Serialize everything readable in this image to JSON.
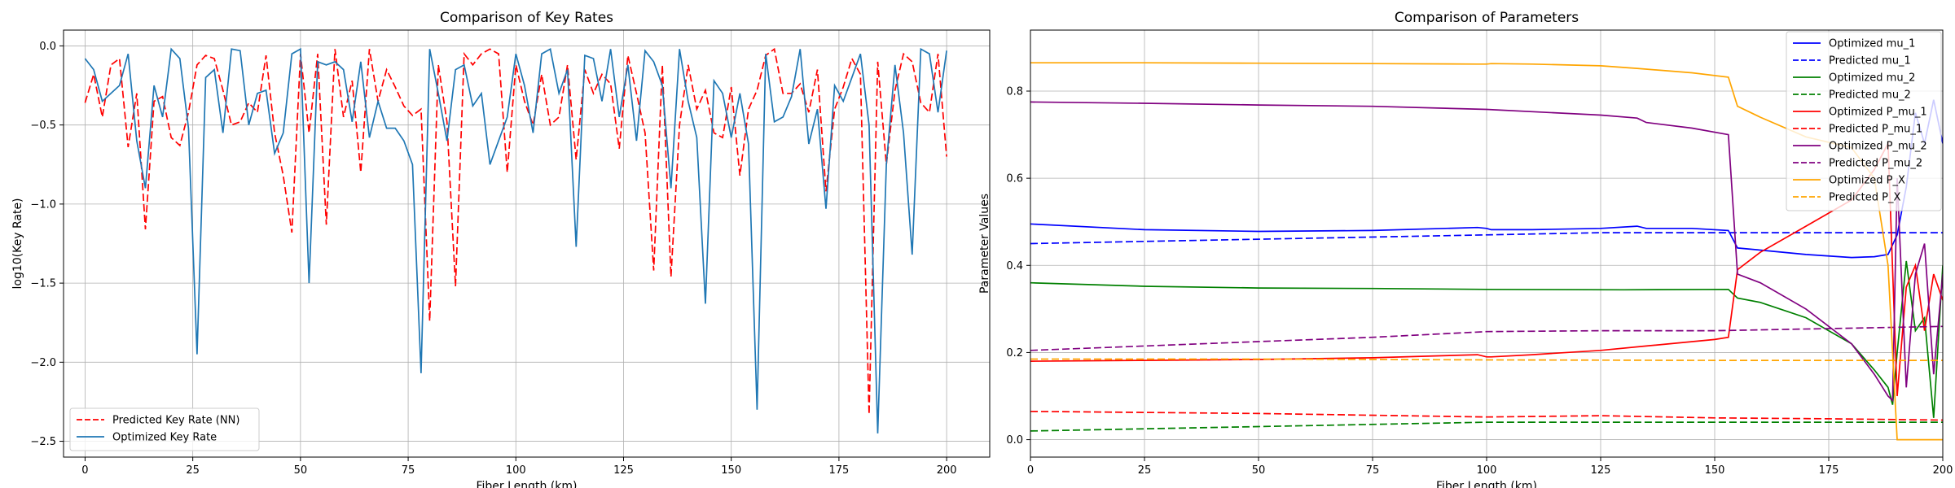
{
  "chart_data": [
    {
      "type": "line",
      "title": "Comparison of Key Rates",
      "xlabel": "Fiber Length (km)",
      "ylabel": "log10(Key Rate)",
      "xlim": [
        -5,
        210
      ],
      "ylim": [
        -2.6,
        0.1
      ],
      "xticks": [
        0,
        25,
        50,
        75,
        100,
        125,
        150,
        175,
        200
      ],
      "yticks": [
        0.0,
        -0.5,
        -1.0,
        -1.5,
        -2.0,
        -2.5
      ],
      "xtick_labels": [
        "0",
        "25",
        "50",
        "75",
        "100",
        "125",
        "150",
        "175",
        "200"
      ],
      "ytick_labels": [
        "0.0",
        "−0.5",
        "−1.0",
        "−1.5",
        "−2.0",
        "−2.5"
      ],
      "grid": true,
      "legend_position": "lower-left",
      "series": [
        {
          "name": "Predicted Key Rate (NN)",
          "color": "#ff0000",
          "dash": "dashed",
          "x": [
            0,
            2,
            4,
            6,
            8,
            10,
            12,
            14,
            16,
            18,
            20,
            22,
            24,
            26,
            28,
            30,
            32,
            34,
            36,
            38,
            40,
            42,
            44,
            46,
            48,
            50,
            52,
            54,
            56,
            58,
            60,
            62,
            64,
            66,
            68,
            70,
            72,
            74,
            76,
            78,
            80,
            82,
            84,
            86,
            88,
            90,
            92,
            94,
            96,
            98,
            100,
            102,
            104,
            106,
            108,
            110,
            112,
            114,
            116,
            118,
            120,
            122,
            124,
            126,
            128,
            130,
            132,
            134,
            136,
            138,
            140,
            142,
            144,
            146,
            148,
            150,
            152,
            154,
            156,
            158,
            160,
            162,
            164,
            166,
            168,
            170,
            172,
            174,
            176,
            178,
            180,
            182,
            184,
            186,
            188,
            190,
            192,
            194,
            196,
            198,
            200
          ],
          "values": [
            -0.36,
            -0.18,
            -0.45,
            -0.12,
            -0.08,
            -0.64,
            -0.3,
            -1.16,
            -0.35,
            -0.32,
            -0.58,
            -0.63,
            -0.42,
            -0.12,
            -0.06,
            -0.08,
            -0.28,
            -0.5,
            -0.48,
            -0.36,
            -0.42,
            -0.06,
            -0.55,
            -0.82,
            -1.18,
            -0.05,
            -0.55,
            -0.05,
            -1.13,
            -0.02,
            -0.45,
            -0.22,
            -0.8,
            -0.02,
            -0.35,
            -0.15,
            -0.26,
            -0.38,
            -0.44,
            -0.4,
            -1.74,
            -0.12,
            -0.48,
            -1.52,
            -0.05,
            -0.12,
            -0.05,
            -0.02,
            -0.05,
            -0.8,
            -0.12,
            -0.35,
            -0.5,
            -0.18,
            -0.5,
            -0.45,
            -0.12,
            -0.72,
            -0.15,
            -0.3,
            -0.18,
            -0.24,
            -0.65,
            -0.06,
            -0.3,
            -0.55,
            -1.42,
            -0.12,
            -1.46,
            -0.5,
            -0.12,
            -0.4,
            -0.28,
            -0.55,
            -0.58,
            -0.26,
            -0.82,
            -0.4,
            -0.28,
            -0.06,
            -0.02,
            -0.3,
            -0.3,
            -0.24,
            -0.42,
            -0.15,
            -0.92,
            -0.4,
            -0.26,
            -0.08,
            -0.18,
            -2.33,
            -0.1,
            -0.75,
            -0.28,
            -0.05,
            -0.1,
            -0.36,
            -0.42,
            -0.05,
            -0.7
          ]
        },
        {
          "name": "Optimized Key Rate",
          "color": "#1f77b4",
          "dash": "solid",
          "x": [
            0,
            2,
            4,
            6,
            8,
            10,
            12,
            14,
            16,
            18,
            20,
            22,
            24,
            26,
            28,
            30,
            32,
            34,
            36,
            38,
            40,
            42,
            44,
            46,
            48,
            50,
            52,
            54,
            56,
            58,
            60,
            62,
            64,
            66,
            68,
            70,
            72,
            74,
            76,
            78,
            80,
            82,
            84,
            86,
            88,
            90,
            92,
            94,
            96,
            98,
            100,
            102,
            104,
            106,
            108,
            110,
            112,
            114,
            116,
            118,
            120,
            122,
            124,
            126,
            128,
            130,
            132,
            134,
            136,
            138,
            140,
            142,
            144,
            146,
            148,
            150,
            152,
            154,
            156,
            158,
            160,
            162,
            164,
            166,
            168,
            170,
            172,
            174,
            176,
            178,
            180,
            182,
            184,
            186,
            188,
            190,
            192,
            194,
            196,
            198,
            200
          ],
          "values": [
            -0.08,
            -0.15,
            -0.35,
            -0.3,
            -0.25,
            -0.05,
            -0.6,
            -0.9,
            -0.25,
            -0.45,
            -0.02,
            -0.08,
            -0.52,
            -1.95,
            -0.2,
            -0.15,
            -0.55,
            -0.02,
            -0.03,
            -0.5,
            -0.3,
            -0.28,
            -0.68,
            -0.55,
            -0.05,
            -0.02,
            -1.5,
            -0.1,
            -0.12,
            -0.1,
            -0.15,
            -0.48,
            -0.1,
            -0.58,
            -0.35,
            -0.52,
            -0.52,
            -0.6,
            -0.75,
            -2.07,
            -0.02,
            -0.3,
            -0.6,
            -0.15,
            -0.12,
            -0.38,
            -0.3,
            -0.75,
            -0.6,
            -0.45,
            -0.05,
            -0.25,
            -0.55,
            -0.05,
            -0.02,
            -0.3,
            -0.15,
            -1.27,
            -0.06,
            -0.08,
            -0.35,
            -0.02,
            -0.45,
            -0.12,
            -0.6,
            -0.03,
            -0.1,
            -0.25,
            -0.9,
            -0.02,
            -0.35,
            -0.58,
            -1.63,
            -0.22,
            -0.3,
            -0.58,
            -0.3,
            -0.62,
            -2.3,
            -0.05,
            -0.48,
            -0.45,
            -0.32,
            -0.02,
            -0.62,
            -0.4,
            -1.03,
            -0.25,
            -0.35,
            -0.2,
            -0.05,
            -0.5,
            -2.45,
            -0.75,
            -0.12,
            -0.55,
            -1.32,
            -0.02,
            -0.05,
            -0.42,
            -0.03
          ]
        }
      ]
    },
    {
      "type": "line",
      "title": "Comparison of Parameters",
      "xlabel": "Fiber Length (km)",
      "ylabel": "Parameter Values",
      "xlim": [
        0,
        200
      ],
      "ylim": [
        -0.04,
        0.94
      ],
      "xticks": [
        0,
        25,
        50,
        75,
        100,
        125,
        150,
        175,
        200
      ],
      "yticks": [
        0.0,
        0.2,
        0.4,
        0.6,
        0.8
      ],
      "xtick_labels": [
        "0",
        "25",
        "50",
        "75",
        "100",
        "125",
        "150",
        "175",
        "200"
      ],
      "ytick_labels": [
        "0.0",
        "0.2",
        "0.4",
        "0.6",
        "0.8"
      ],
      "grid": true,
      "legend_position": "top-right",
      "series": [
        {
          "name": "Optimized mu_1",
          "color": "#0000ff",
          "dash": "solid",
          "x": [
            0,
            25,
            50,
            75,
            98,
            100,
            101,
            110,
            125,
            133,
            135,
            145,
            153,
            155,
            160,
            170,
            180,
            185,
            188,
            190,
            192,
            194,
            196,
            198,
            200
          ],
          "values": [
            0.495,
            0.482,
            0.478,
            0.48,
            0.487,
            0.485,
            0.482,
            0.482,
            0.485,
            0.49,
            0.485,
            0.485,
            0.48,
            0.44,
            0.435,
            0.425,
            0.418,
            0.42,
            0.425,
            0.47,
            0.58,
            0.75,
            0.68,
            0.78,
            0.68
          ]
        },
        {
          "name": "Predicted mu_1",
          "color": "#0000ff",
          "dash": "dashed",
          "x": [
            0,
            50,
            100,
            125,
            150,
            175,
            200
          ],
          "values": [
            0.45,
            0.46,
            0.47,
            0.475,
            0.475,
            0.475,
            0.475
          ]
        },
        {
          "name": "Optimized mu_2",
          "color": "#008000",
          "dash": "solid",
          "x": [
            0,
            25,
            50,
            75,
            100,
            130,
            153,
            155,
            160,
            170,
            180,
            185,
            188,
            189,
            190,
            192,
            194,
            196,
            198,
            200
          ],
          "values": [
            0.36,
            0.352,
            0.348,
            0.347,
            0.345,
            0.344,
            0.345,
            0.325,
            0.315,
            0.28,
            0.22,
            0.16,
            0.12,
            0.08,
            0.2,
            0.41,
            0.25,
            0.28,
            0.05,
            0.4
          ]
        },
        {
          "name": "Predicted mu_2",
          "color": "#008000",
          "dash": "dashed",
          "x": [
            0,
            50,
            100,
            150,
            200
          ],
          "values": [
            0.02,
            0.03,
            0.04,
            0.04,
            0.04
          ]
        },
        {
          "name": "Optimized P_mu_1",
          "color": "#ff0000",
          "dash": "solid",
          "x": [
            0,
            25,
            50,
            75,
            98,
            100,
            101,
            110,
            125,
            135,
            150,
            153,
            155,
            160,
            170,
            180,
            185,
            188,
            190,
            192,
            194,
            196,
            198,
            200
          ],
          "values": [
            0.18,
            0.182,
            0.184,
            0.188,
            0.195,
            0.19,
            0.19,
            0.195,
            0.205,
            0.215,
            0.23,
            0.235,
            0.39,
            0.43,
            0.49,
            0.55,
            0.62,
            0.68,
            0.1,
            0.35,
            0.4,
            0.25,
            0.38,
            0.32
          ]
        },
        {
          "name": "Predicted P_mu_1",
          "color": "#ff0000",
          "dash": "dashed",
          "x": [
            0,
            50,
            100,
            125,
            150,
            175,
            200
          ],
          "values": [
            0.065,
            0.06,
            0.052,
            0.055,
            0.05,
            0.048,
            0.045
          ]
        },
        {
          "name": "Optimized P_mu_2",
          "color": "#800080",
          "dash": "solid",
          "x": [
            0,
            25,
            50,
            75,
            100,
            125,
            133,
            135,
            145,
            153,
            155,
            160,
            170,
            180,
            185,
            188,
            189,
            190,
            192,
            194,
            196,
            198,
            200
          ],
          "values": [
            0.775,
            0.772,
            0.768,
            0.765,
            0.758,
            0.745,
            0.738,
            0.728,
            0.715,
            0.7,
            0.38,
            0.36,
            0.3,
            0.22,
            0.15,
            0.1,
            0.09,
            0.6,
            0.12,
            0.38,
            0.45,
            0.15,
            0.38
          ]
        },
        {
          "name": "Predicted P_mu_2",
          "color": "#800080",
          "dash": "dashed",
          "x": [
            0,
            25,
            50,
            75,
            100,
            125,
            150,
            175,
            200
          ],
          "values": [
            0.205,
            0.215,
            0.225,
            0.235,
            0.248,
            0.25,
            0.25,
            0.255,
            0.26
          ]
        },
        {
          "name": "Optimized P_X",
          "color": "#ffa500",
          "dash": "solid",
          "x": [
            0,
            25,
            50,
            75,
            98,
            100,
            101,
            110,
            125,
            133,
            145,
            153,
            155,
            160,
            170,
            180,
            185,
            188,
            190,
            192,
            194,
            196,
            198,
            200
          ],
          "values": [
            0.865,
            0.865,
            0.864,
            0.863,
            0.862,
            0.862,
            0.863,
            0.862,
            0.858,
            0.852,
            0.842,
            0.832,
            0.765,
            0.74,
            0.695,
            0.67,
            0.6,
            0.4,
            0.0,
            0.0,
            0.0,
            0.0,
            0.0,
            0.0
          ]
        },
        {
          "name": "Predicted P_X",
          "color": "#ffa500",
          "dash": "dashed",
          "x": [
            0,
            50,
            100,
            150,
            200
          ],
          "values": [
            0.185,
            0.185,
            0.183,
            0.182,
            0.182
          ]
        }
      ]
    }
  ]
}
